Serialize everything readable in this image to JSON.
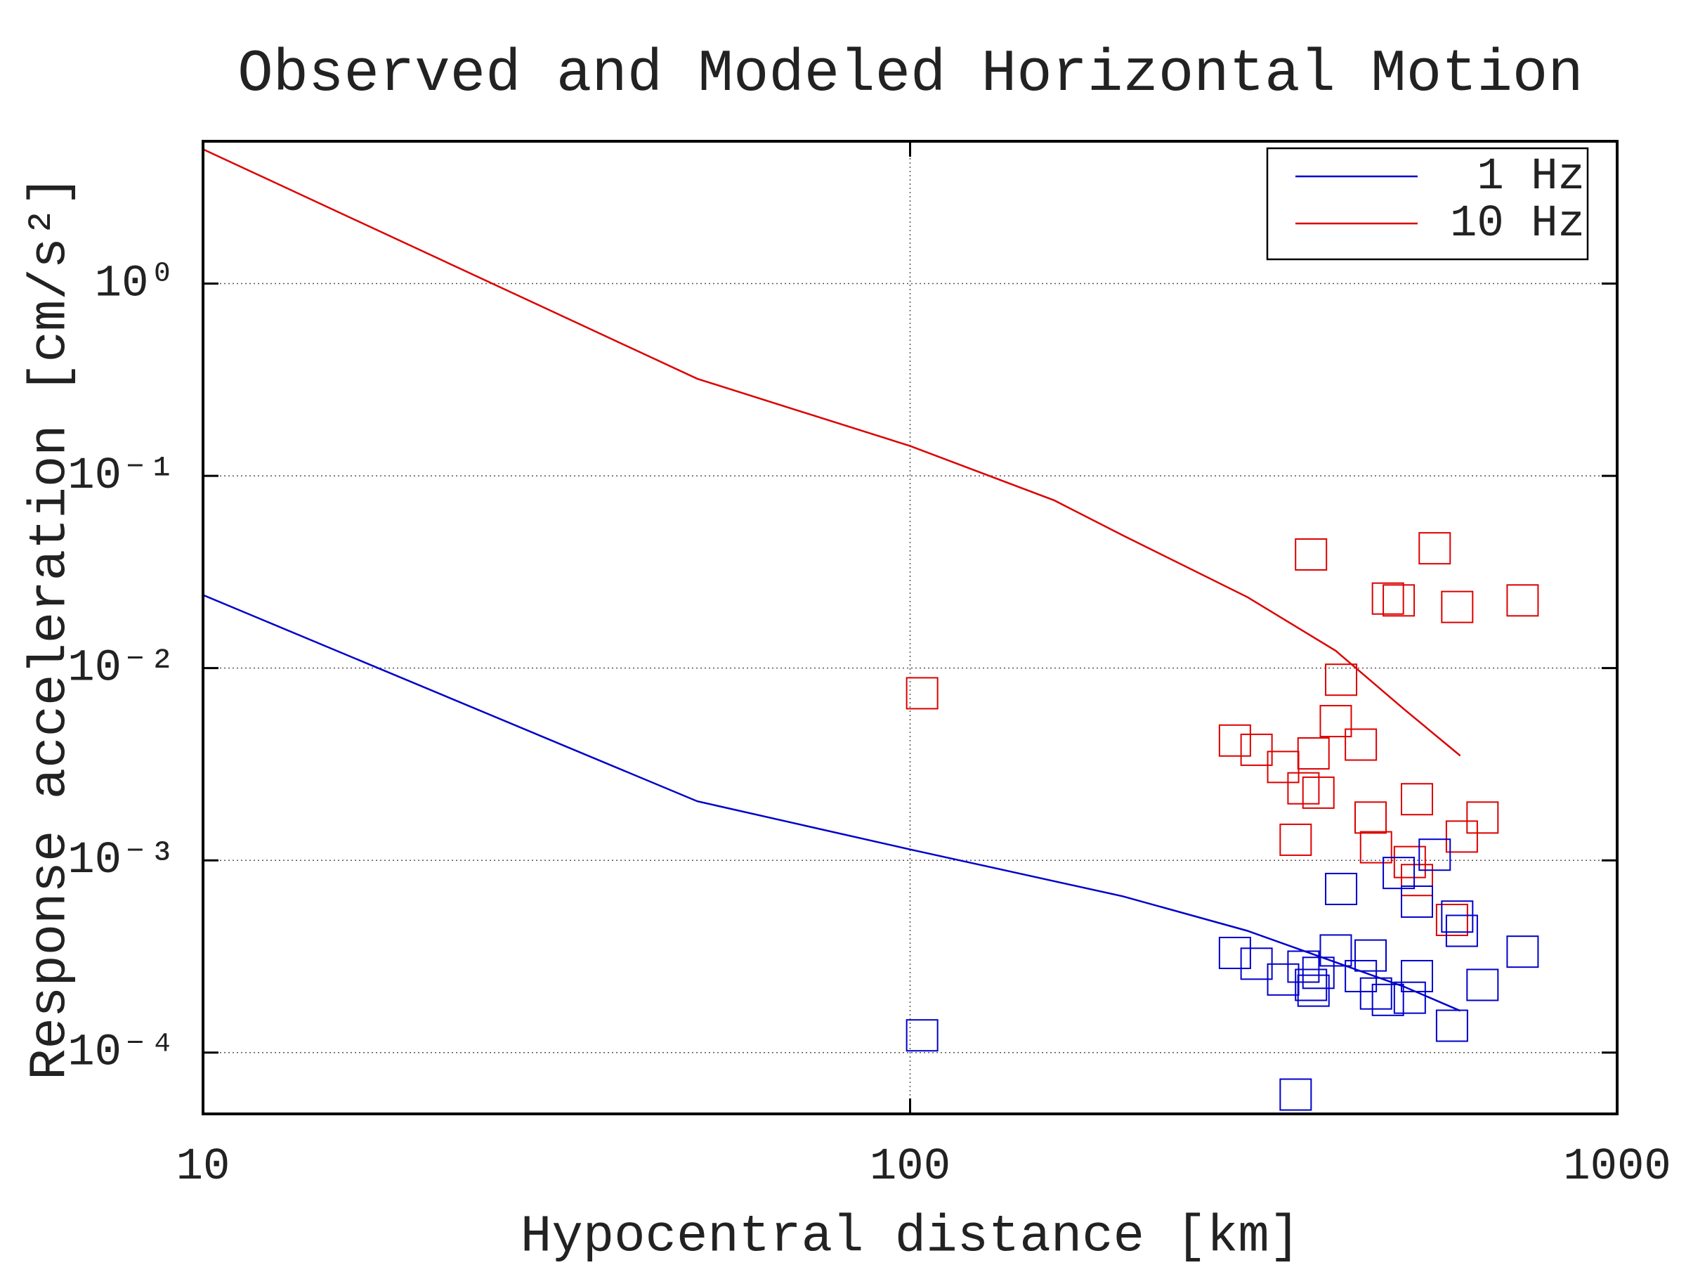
{
  "chart_data": {
    "type": "line",
    "title": "Observed and Modeled Horizontal Motion",
    "x_label": "Hypocentral distance [km]",
    "y_label": "Response acceleration [cm/s²]",
    "x_log": true,
    "y_log": true,
    "grid": true,
    "legend": "upper right",
    "xlim": [
      10,
      1000
    ],
    "xticks": [
      10,
      100,
      1000
    ],
    "ylim": [
      4.8e-05,
      5.5
    ],
    "yticks": [
      {
        "value": 0.0001,
        "label": "10⁻⁴"
      },
      {
        "value": 0.001,
        "label": "10⁻³"
      },
      {
        "value": 0.01,
        "label": "10⁻²"
      },
      {
        "value": 0.1,
        "label": "10⁻¹"
      },
      {
        "value": 1,
        "label": "10⁰"
      }
    ],
    "series": [
      {
        "name": "1 Hz",
        "color": "#0000cc",
        "x": [
          10,
          50,
          100,
          200,
          300,
          400,
          500,
          600
        ],
        "values": [
          0.024,
          0.00203,
          0.00114,
          0.00065,
          0.00043,
          0.000295,
          0.00022,
          0.000165
        ]
      },
      {
        "name": "10 Hz",
        "color": "#dd0000",
        "x": [
          10,
          50,
          100,
          160,
          200,
          300,
          400,
          500,
          600
        ],
        "values": [
          5.0,
          0.32,
          0.143,
          0.0745,
          0.049,
          0.0234,
          0.0123,
          0.0061,
          0.0035
        ]
      },
      {
        "color": "#dd0000",
        "marker": "square",
        "x": [
          104,
          369,
          552,
          474,
          491,
          594,
          735,
          407,
          400,
          288,
          309,
          434,
          372,
          337,
          360,
          378,
          521,
          448,
          645,
          603,
          351,
          456,
          509,
          521,
          584
        ],
        "values": [
          0.0074,
          0.039,
          0.042,
          0.023,
          0.0225,
          0.0208,
          0.0225,
          0.0087,
          0.0053,
          0.0042,
          0.00376,
          0.004,
          0.0036,
          0.00306,
          0.00237,
          0.00225,
          0.00208,
          0.00167,
          0.00167,
          0.00133,
          0.00128,
          0.00117,
          0.00098,
          0.00079,
          0.00049
        ]
      },
      {
        "color": "#0000cc",
        "marker": "square",
        "x": [
          104,
          351,
          552,
          491,
          407,
          521,
          594,
          603,
          735,
          288,
          400,
          309,
          448,
          360,
          337,
          378,
          434,
          521,
          369,
          372,
          456,
          474,
          509,
          645,
          584
        ],
        "values": [
          0.000123,
          6.05e-05,
          0.00107,
          0.00086,
          0.00071,
          0.00061,
          0.00051,
          0.00043,
          0.000335,
          0.00033,
          0.00034,
          0.00029,
          0.00032,
          0.00028,
          0.00024,
          0.00026,
          0.00025,
          0.00025,
          0.000225,
          0.00021,
          0.000203,
          0.000188,
          0.000193,
          0.000225,
          0.000138
        ]
      }
    ]
  }
}
